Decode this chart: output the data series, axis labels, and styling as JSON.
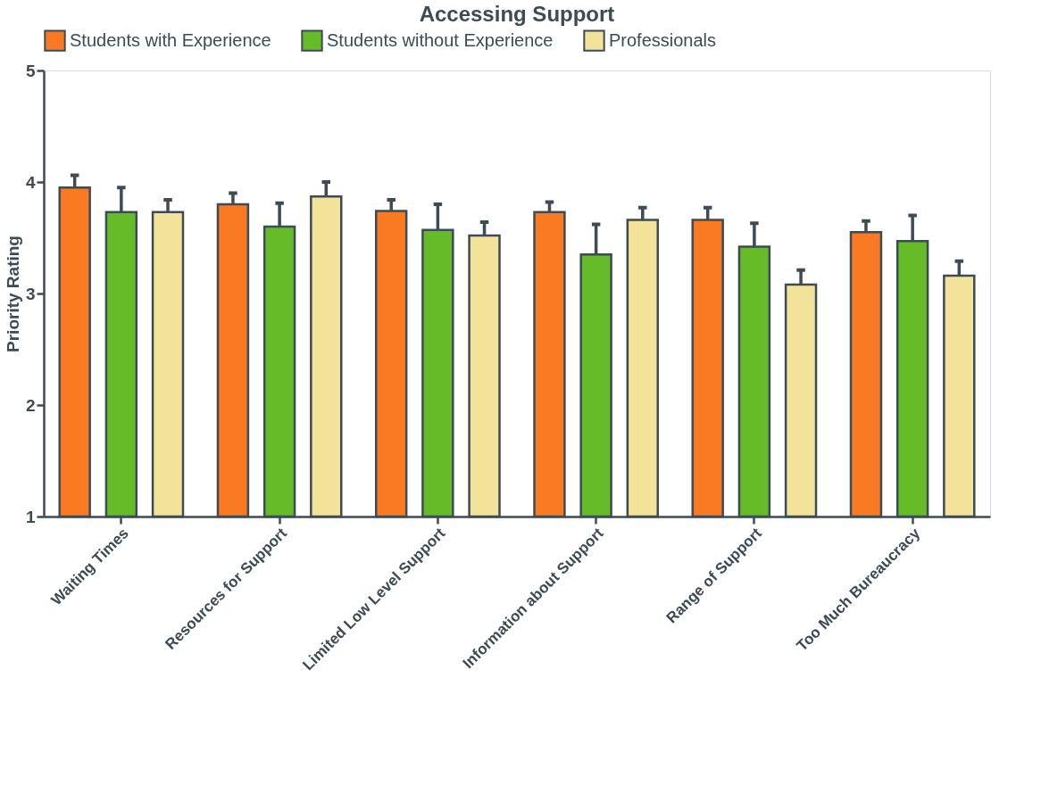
{
  "chart_data": {
    "type": "bar",
    "title": "Accessing Support",
    "ylabel": "Priority Rating",
    "categories": [
      "Waiting Times",
      "Resources for Support",
      "Limited Low Level Support",
      "Information about Support",
      "Range of Support",
      "Too Much Bureaucracy"
    ],
    "series": [
      {
        "name": "Students with Experience",
        "color": "#f97a23",
        "values": [
          3.95,
          3.8,
          3.74,
          3.73,
          3.66,
          3.55
        ],
        "errors": [
          [
            3.95,
            4.06
          ],
          [
            3.8,
            3.9
          ],
          [
            3.74,
            3.84
          ],
          [
            3.73,
            3.82
          ],
          [
            3.66,
            3.77
          ],
          [
            3.55,
            3.65
          ]
        ]
      },
      {
        "name": "Students without Experience",
        "color": "#66bb29",
        "values": [
          3.73,
          3.6,
          3.57,
          3.35,
          3.42,
          3.47
        ],
        "errors": [
          [
            3.73,
            3.95
          ],
          [
            3.6,
            3.81
          ],
          [
            3.57,
            3.8
          ],
          [
            3.35,
            3.62
          ],
          [
            3.42,
            3.63
          ],
          [
            3.47,
            3.7
          ]
        ]
      },
      {
        "name": "Professionals",
        "color": "#f3e39a",
        "values": [
          3.73,
          3.87,
          3.52,
          3.66,
          3.08,
          3.16
        ],
        "errors": [
          [
            3.73,
            3.84
          ],
          [
            3.87,
            4.0
          ],
          [
            3.52,
            3.64
          ],
          [
            3.66,
            3.77
          ],
          [
            3.08,
            3.21
          ],
          [
            3.16,
            3.29
          ]
        ]
      }
    ],
    "ylim": [
      1,
      5
    ],
    "yticks": [
      1,
      2,
      3,
      4,
      5
    ],
    "grid": false,
    "legend": "top"
  }
}
